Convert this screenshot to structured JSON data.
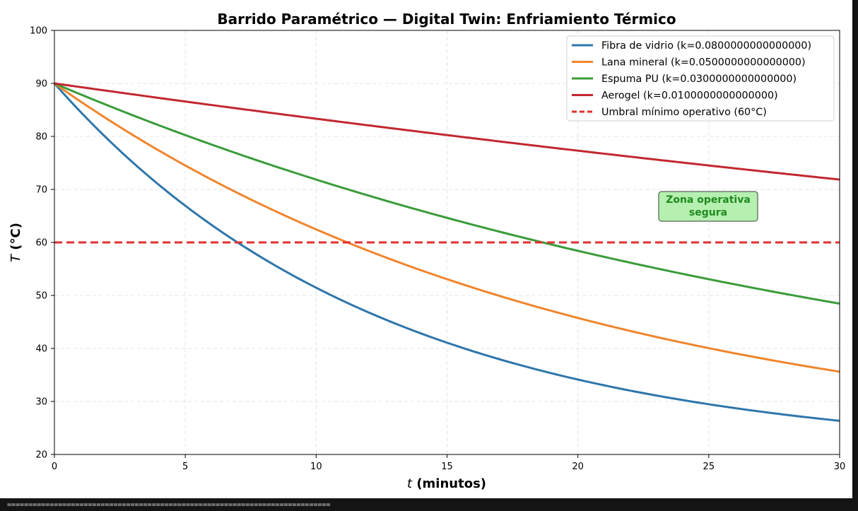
{
  "chart_data": {
    "type": "line",
    "title": "Barrido Paramétrico — Digital Twin: Enfriamiento Térmico",
    "xlabel_var": "t",
    "xlabel_rest": " (minutos)",
    "ylabel_var": "T",
    "ylabel_rest": " (°C)",
    "xlim": [
      0,
      30
    ],
    "ylim": [
      20,
      100
    ],
    "xticks": [
      0,
      5,
      10,
      15,
      20,
      25,
      30
    ],
    "yticks": [
      20,
      30,
      40,
      50,
      60,
      70,
      80,
      90,
      100
    ],
    "grid": true,
    "legend_position": "top-right",
    "model": {
      "T0": 90,
      "T_ambient": 20
    },
    "series": [
      {
        "name": "Fibra de vidrio (k=0.0800000000000000)",
        "k": 0.08,
        "color": "#2f76ab",
        "x": [
          0,
          5,
          10,
          15,
          20,
          25,
          30
        ],
        "values": [
          90,
          68.5,
          54.3,
          44.7,
          38.2,
          33.9,
          30.9
        ]
      },
      {
        "name": "Lana mineral (k=0.0500000000000000)",
        "k": 0.05,
        "color": "#f0852d",
        "x": [
          0,
          5,
          10,
          15,
          20,
          25,
          30
        ],
        "values": [
          90,
          75.5,
          64.7,
          56.3,
          48.8,
          43.6,
          39.5
        ]
      },
      {
        "name": "Espuma PU (k=0.0300000000000000)",
        "k": 0.03,
        "color": "#3a9c3a",
        "x": [
          0,
          5,
          10,
          15,
          20,
          25,
          30
        ],
        "values": [
          90,
          80.9,
          73.1,
          66.4,
          60.6,
          55.7,
          51.5
        ]
      },
      {
        "name": "Aerogel (k=0.0100000000000000)",
        "k": 0.01,
        "color": "#c3272f",
        "x": [
          0,
          5,
          10,
          15,
          20,
          25,
          30
        ],
        "values": [
          90,
          86.6,
          83.4,
          80.3,
          77.5,
          74.6,
          73.1
        ]
      }
    ],
    "threshold": {
      "name": "Umbral mínimo operativo (60°C)",
      "value": 60,
      "color": "#e03030",
      "style": "dashed"
    },
    "annotation": {
      "lines": [
        "Zona operativa",
        "segura"
      ],
      "x": 25.5,
      "y": 67,
      "text_color": "#1f8a1f",
      "box_color": "#b5f0b0"
    }
  },
  "footer": "============================================================================"
}
